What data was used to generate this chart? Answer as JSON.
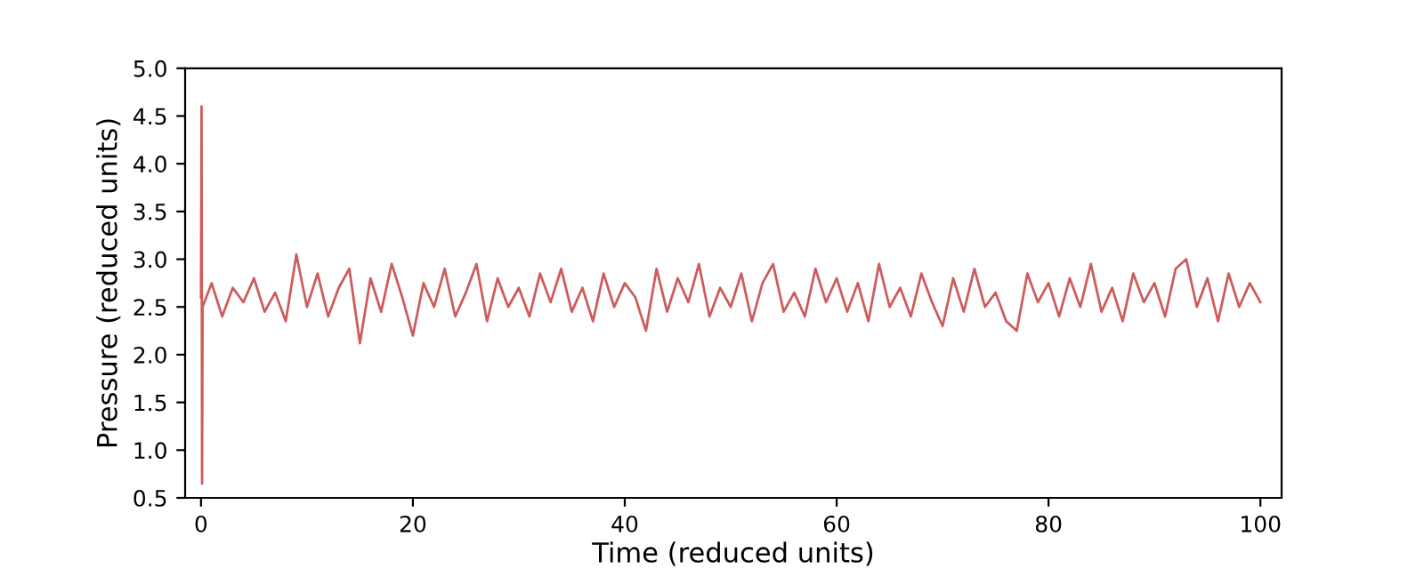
{
  "chart_data": {
    "type": "line",
    "xlabel": "Time (reduced units)",
    "ylabel": "Pressure (reduced units)",
    "x": [
      0,
      0.05,
      0.1,
      0.15,
      1,
      2,
      3,
      4,
      5,
      6,
      7,
      8,
      9,
      10,
      11,
      12,
      13,
      14,
      15,
      16,
      17,
      18,
      19,
      20,
      21,
      22,
      23,
      24,
      25,
      26,
      27,
      28,
      29,
      30,
      31,
      32,
      33,
      34,
      35,
      36,
      37,
      38,
      39,
      40,
      41,
      42,
      43,
      44,
      45,
      46,
      47,
      48,
      49,
      50,
      51,
      52,
      53,
      54,
      55,
      56,
      57,
      58,
      59,
      60,
      61,
      62,
      63,
      64,
      65,
      66,
      67,
      68,
      69,
      70,
      71,
      72,
      73,
      74,
      75,
      76,
      77,
      78,
      79,
      80,
      81,
      82,
      83,
      84,
      85,
      86,
      87,
      88,
      89,
      90,
      91,
      92,
      93,
      94,
      95,
      96,
      97,
      98,
      99,
      100
    ],
    "series": [
      {
        "color": "#cd5c5c",
        "values": [
          2.6,
          4.6,
          0.65,
          2.5,
          2.75,
          2.4,
          2.7,
          2.55,
          2.8,
          2.45,
          2.65,
          2.35,
          3.05,
          2.5,
          2.85,
          2.4,
          2.7,
          2.9,
          2.12,
          2.8,
          2.45,
          2.95,
          2.6,
          2.2,
          2.75,
          2.5,
          2.9,
          2.4,
          2.65,
          2.95,
          2.35,
          2.8,
          2.5,
          2.7,
          2.4,
          2.85,
          2.55,
          2.9,
          2.45,
          2.7,
          2.35,
          2.85,
          2.5,
          2.75,
          2.6,
          2.25,
          2.9,
          2.45,
          2.8,
          2.55,
          2.95,
          2.4,
          2.7,
          2.5,
          2.85,
          2.35,
          2.75,
          2.95,
          2.45,
          2.65,
          2.4,
          2.9,
          2.55,
          2.8,
          2.45,
          2.75,
          2.35,
          2.95,
          2.5,
          2.7,
          2.4,
          2.85,
          2.55,
          2.3,
          2.8,
          2.45,
          2.9,
          2.5,
          2.65,
          2.35,
          2.25,
          2.85,
          2.55,
          2.75,
          2.4,
          2.8,
          2.5,
          2.95,
          2.45,
          2.7,
          2.35,
          2.85,
          2.55,
          2.75,
          2.4,
          2.9,
          3.0,
          2.5,
          2.8,
          2.35,
          2.85,
          2.5,
          2.75,
          2.55
        ]
      }
    ],
    "xlim": [
      -1.5,
      102
    ],
    "xticks": [
      0,
      20,
      40,
      60,
      80,
      100
    ],
    "ylim": [
      0.5,
      5.0
    ],
    "yticks": [
      {
        "value": 0.5,
        "label": "0.5"
      },
      {
        "value": 1.0,
        "label": "1.0"
      },
      {
        "value": 1.5,
        "label": "1.5"
      },
      {
        "value": 2.0,
        "label": "2.0"
      },
      {
        "value": 2.5,
        "label": "2.5"
      },
      {
        "value": 3.0,
        "label": "3.0"
      },
      {
        "value": 3.5,
        "label": "3.5"
      },
      {
        "value": 4.0,
        "label": "4.0"
      },
      {
        "value": 4.5,
        "label": "4.5"
      },
      {
        "value": 5.0,
        "label": "5.0"
      }
    ],
    "grid": false
  }
}
